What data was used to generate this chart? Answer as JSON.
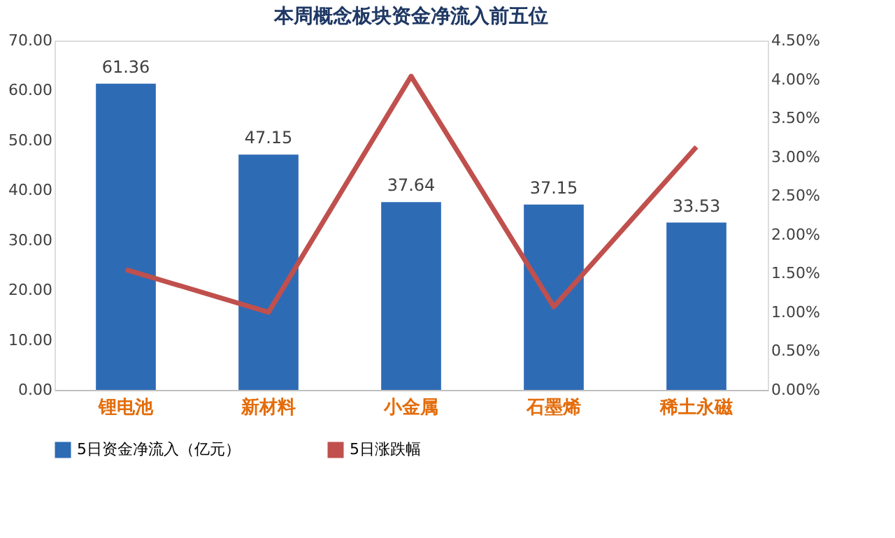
{
  "chart_data": {
    "type": "bar",
    "title": "本周概念板块资金净流入前五位",
    "categories": [
      "锂电池",
      "新材料",
      "小金属",
      "石墨烯",
      "稀土永磁"
    ],
    "series": [
      {
        "name": "5日资金净流入（亿元）",
        "color": "#2e6bb5",
        "values": [
          61.36,
          47.15,
          37.64,
          37.15,
          33.53
        ],
        "value_labels": [
          "61.36",
          "47.15",
          "37.64",
          "37.15",
          "33.53"
        ]
      },
      {
        "name": "5日涨跌幅",
        "color": "#c0504d",
        "values": [
          1.55,
          1.0,
          4.04,
          1.07,
          3.13
        ],
        "type": "line",
        "axis": "y2"
      }
    ],
    "ylim": [
      0,
      70
    ],
    "yticks": [
      {
        "value": 0,
        "label": "0.00"
      },
      {
        "value": 10,
        "label": "10.00"
      },
      {
        "value": 20,
        "label": "20.00"
      },
      {
        "value": 30,
        "label": "30.00"
      },
      {
        "value": 40,
        "label": "40.00"
      },
      {
        "value": 50,
        "label": "50.00"
      },
      {
        "value": 60,
        "label": "60.00"
      },
      {
        "value": 70,
        "label": "70.00"
      }
    ],
    "y2lim": [
      0,
      4.5
    ],
    "y2ticks": [
      {
        "value": 0,
        "label": "0.00%"
      },
      {
        "value": 0.5,
        "label": "0.50%"
      },
      {
        "value": 1,
        "label": "1.00%"
      },
      {
        "value": 1.5,
        "label": "1.50%"
      },
      {
        "value": 2,
        "label": "2.00%"
      },
      {
        "value": 2.5,
        "label": "2.50%"
      },
      {
        "value": 3,
        "label": "3.00%"
      },
      {
        "value": 3.5,
        "label": "3.50%"
      },
      {
        "value": 4,
        "label": "4.00%"
      },
      {
        "value": 4.5,
        "label": "4.50%"
      }
    ],
    "grid": false,
    "legend": "bottom"
  }
}
